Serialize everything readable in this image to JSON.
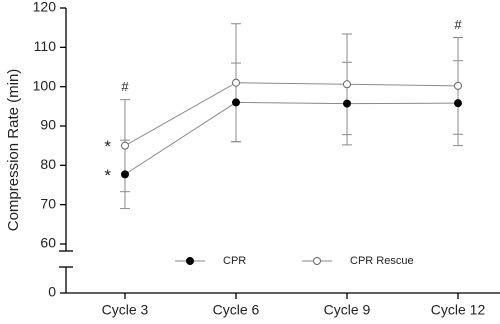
{
  "chart_data": {
    "type": "line",
    "y_label": "Compression Rate (min)",
    "categories": [
      "Cycle 3",
      "Cycle 6",
      "Cycle 9",
      "Cycle 12"
    ],
    "series": [
      {
        "name": "CPR",
        "color": "#000000",
        "marker": "filled",
        "values": [
          77.7,
          96,
          95.7,
          95.8
        ],
        "errors": [
          8.7,
          10,
          10.5,
          10.8
        ]
      },
      {
        "name": "CPR Rescue",
        "color": "#ffffff",
        "marker": "open",
        "values": [
          85,
          101,
          100.6,
          100.2
        ],
        "errors": [
          11.7,
          15,
          12.8,
          12.3
        ]
      }
    ],
    "ylim": [
      60,
      120
    ],
    "yticks": [
      0,
      60,
      70,
      80,
      90,
      100,
      110,
      120
    ],
    "axis_break": true,
    "annotations": [
      {
        "text": "*",
        "series": 0,
        "index": 0,
        "place": "left"
      },
      {
        "text": "*",
        "series": 1,
        "index": 0,
        "place": "left"
      },
      {
        "text": "#",
        "series": 1,
        "index": 0,
        "place": "above"
      },
      {
        "text": "#",
        "series": 1,
        "index": 3,
        "place": "above"
      }
    ]
  }
}
